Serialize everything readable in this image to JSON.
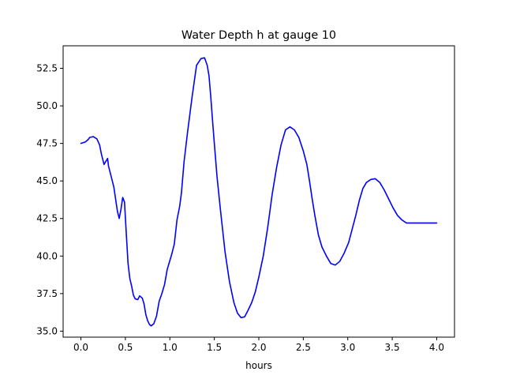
{
  "chart_data": {
    "type": "line",
    "title": "Water Depth h at gauge 10",
    "xlabel": "hours",
    "ylabel": "",
    "xlim": [
      -0.2,
      4.2
    ],
    "ylim": [
      34.6,
      54.0
    ],
    "xticks": [
      0.0,
      0.5,
      1.0,
      1.5,
      2.0,
      2.5,
      3.0,
      3.5,
      4.0
    ],
    "xtick_labels": [
      "0.0",
      "0.5",
      "1.0",
      "1.5",
      "2.0",
      "2.5",
      "3.0",
      "3.5",
      "4.0"
    ],
    "yticks": [
      35.0,
      37.5,
      40.0,
      42.5,
      45.0,
      47.5,
      50.0,
      52.5
    ],
    "ytick_labels": [
      "35.0",
      "37.5",
      "40.0",
      "42.5",
      "45.0",
      "47.5",
      "50.0",
      "52.5"
    ],
    "grid": false,
    "series": [
      {
        "color": "#0000ff",
        "x": [
          0.0,
          0.05,
          0.08,
          0.1,
          0.14,
          0.18,
          0.21,
          0.23,
          0.26,
          0.28,
          0.3,
          0.31,
          0.34,
          0.37,
          0.39,
          0.41,
          0.43,
          0.45,
          0.47,
          0.49,
          0.51,
          0.53,
          0.55,
          0.57,
          0.59,
          0.61,
          0.64,
          0.66,
          0.69,
          0.71,
          0.73,
          0.75,
          0.77,
          0.79,
          0.82,
          0.85,
          0.88,
          0.91,
          0.94,
          0.97,
          1.0,
          1.02,
          1.05,
          1.08,
          1.11,
          1.13,
          1.16,
          1.2,
          1.25,
          1.3,
          1.35,
          1.39,
          1.42,
          1.44,
          1.46,
          1.48,
          1.5,
          1.53,
          1.57,
          1.62,
          1.67,
          1.72,
          1.76,
          1.8,
          1.84,
          1.88,
          1.92,
          1.96,
          2.0,
          2.05,
          2.1,
          2.15,
          2.2,
          2.25,
          2.3,
          2.35,
          2.4,
          2.45,
          2.5,
          2.54,
          2.57,
          2.6,
          2.63,
          2.67,
          2.71,
          2.76,
          2.81,
          2.86,
          2.91,
          2.96,
          3.01,
          3.05,
          3.09,
          3.13,
          3.17,
          3.21,
          3.26,
          3.31,
          3.36,
          3.41,
          3.46,
          3.51,
          3.56,
          3.61,
          3.66,
          3.71,
          3.76,
          3.81,
          3.86,
          3.91,
          3.96,
          4.0
        ],
        "y": [
          47.5,
          47.6,
          47.75,
          47.9,
          47.95,
          47.8,
          47.4,
          46.8,
          46.1,
          46.3,
          46.5,
          46.0,
          45.3,
          44.6,
          43.8,
          43.0,
          42.5,
          43.1,
          43.9,
          43.6,
          41.5,
          39.5,
          38.5,
          38.0,
          37.4,
          37.15,
          37.1,
          37.35,
          37.2,
          36.8,
          36.1,
          35.7,
          35.45,
          35.35,
          35.5,
          36.0,
          37.0,
          37.5,
          38.1,
          39.1,
          39.7,
          40.1,
          40.8,
          42.4,
          43.3,
          44.2,
          46.3,
          48.3,
          50.6,
          52.7,
          53.15,
          53.2,
          52.7,
          52.0,
          50.6,
          49.0,
          47.5,
          45.3,
          43.0,
          40.3,
          38.3,
          36.9,
          36.2,
          35.9,
          35.95,
          36.4,
          36.9,
          37.6,
          38.6,
          40.0,
          41.9,
          44.1,
          45.9,
          47.4,
          48.4,
          48.6,
          48.4,
          47.9,
          47.0,
          46.1,
          45.0,
          43.8,
          42.7,
          41.4,
          40.6,
          40.0,
          39.5,
          39.4,
          39.65,
          40.2,
          40.9,
          41.8,
          42.7,
          43.7,
          44.5,
          44.9,
          45.1,
          45.15,
          44.9,
          44.4,
          43.8,
          43.2,
          42.7,
          42.4,
          42.2,
          42.2,
          42.2,
          42.2,
          42.2,
          42.2,
          42.2,
          42.2
        ]
      }
    ]
  }
}
